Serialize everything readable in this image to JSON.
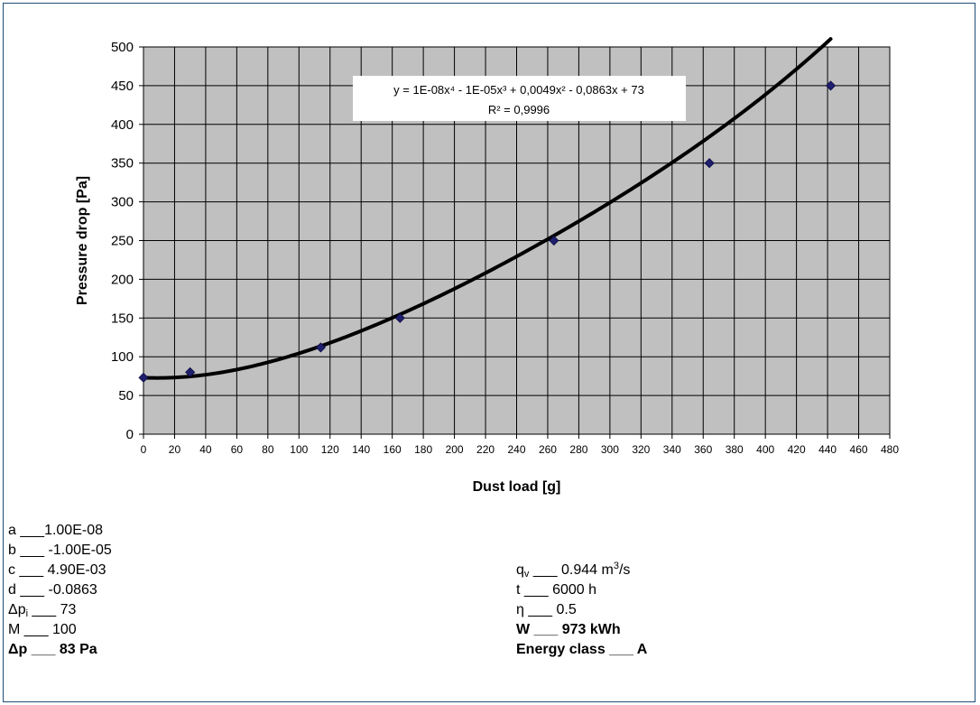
{
  "chart_data": {
    "type": "scatter",
    "xlabel": "Dust load [g]",
    "ylabel": "Pressure drop [Pa]",
    "xlim": [
      0,
      480
    ],
    "ylim": [
      0,
      500
    ],
    "x_ticks": [
      0,
      20,
      40,
      60,
      80,
      100,
      120,
      140,
      160,
      180,
      200,
      220,
      240,
      260,
      280,
      300,
      320,
      340,
      360,
      380,
      400,
      420,
      440,
      460,
      480
    ],
    "y_ticks": [
      0,
      50,
      100,
      150,
      200,
      250,
      300,
      350,
      400,
      450,
      500
    ],
    "grid": true,
    "legend": "none",
    "series": [
      {
        "x": [
          0,
          30,
          114,
          165,
          264,
          364,
          442
        ],
        "y": [
          73,
          80,
          112,
          150,
          250,
          350,
          450
        ],
        "marker": "diamond",
        "color": "#1f1f6e"
      }
    ],
    "trendline": {
      "coefficients": {
        "a": 1e-08,
        "b": -1e-05,
        "c": 0.0049,
        "d": -0.0863,
        "e": 73
      },
      "x_range": [
        0,
        442
      ],
      "color": "#000000",
      "equation_label": "y = 1E-08x⁴ - 1E-05x³ + 0,0049x² - 0,0863x + 73",
      "r2_label": "R² = 0,9996"
    },
    "plot_background": "#c0c0c0"
  },
  "parameters": {
    "a": {
      "label": "a",
      "sep": "___",
      "value": "1.00E-08"
    },
    "b": {
      "label": "b",
      "sep": "___",
      "value": "-1.00E-05"
    },
    "c": {
      "label": "c",
      "sep": "___",
      "value": "4.90E-03"
    },
    "d": {
      "label": "d",
      "sep": "___",
      "value": "-0.0863"
    },
    "dpi": {
      "label": "Δp",
      "sub": "i",
      "sep": "___",
      "value": "73"
    },
    "M": {
      "label": "M",
      "sep": "___",
      "value": "100"
    },
    "dp": {
      "label": "Δp",
      "sep": "___",
      "value": "83 Pa"
    },
    "qv": {
      "label": "q",
      "sub": "v",
      "sep": "___",
      "value": "0.944 m",
      "sup": "3",
      "unit_tail": "/s"
    },
    "t": {
      "label": "t",
      "sep": "___",
      "value": "6000 h"
    },
    "eta": {
      "label": "η",
      "sep": "___",
      "value": "0.5"
    },
    "W": {
      "label": "W",
      "sep": "___",
      "value": "973 kWh"
    },
    "energy_class": {
      "label": "Energy class",
      "sep": "___",
      "value": "A"
    }
  }
}
